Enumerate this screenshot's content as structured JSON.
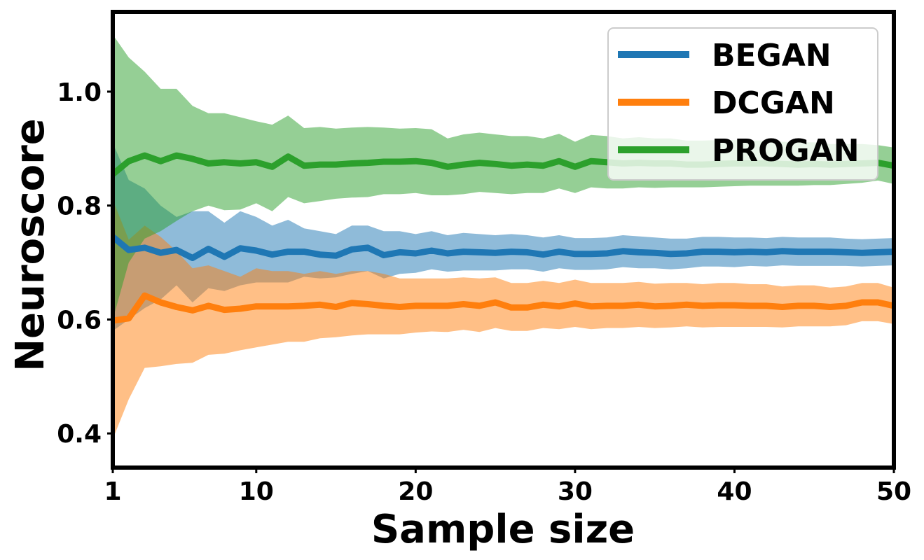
{
  "chart_data": {
    "type": "line",
    "xlabel": "Sample size",
    "ylabel": "Neuroscore",
    "xlim": [
      1,
      50
    ],
    "ylim": [
      0.34,
      1.14
    ],
    "xticks": [
      1,
      10,
      20,
      30,
      40,
      50
    ],
    "yticks": [
      0.4,
      0.6,
      0.8,
      1.0
    ],
    "ytick_labels": [
      "0.4",
      "0.6",
      "0.8",
      "1.0"
    ],
    "grid": false,
    "legend_position": "top-right",
    "series": [
      {
        "name": "BEGAN",
        "color": "#1f77b4",
        "band_color": "#1f77b4",
        "x": [
          1,
          2,
          3,
          4,
          5,
          6,
          7,
          8,
          9,
          10,
          11,
          12,
          13,
          14,
          15,
          16,
          17,
          18,
          19,
          20,
          21,
          22,
          23,
          24,
          25,
          26,
          27,
          28,
          29,
          30,
          31,
          32,
          33,
          34,
          35,
          36,
          37,
          38,
          39,
          40,
          41,
          42,
          43,
          44,
          45,
          46,
          47,
          48,
          49,
          50
        ],
        "mean": [
          0.745,
          0.722,
          0.726,
          0.717,
          0.722,
          0.708,
          0.724,
          0.71,
          0.725,
          0.721,
          0.714,
          0.719,
          0.719,
          0.714,
          0.712,
          0.723,
          0.726,
          0.713,
          0.718,
          0.716,
          0.721,
          0.716,
          0.719,
          0.718,
          0.717,
          0.719,
          0.718,
          0.714,
          0.719,
          0.715,
          0.715,
          0.716,
          0.72,
          0.718,
          0.717,
          0.715,
          0.716,
          0.719,
          0.719,
          0.718,
          0.719,
          0.718,
          0.72,
          0.719,
          0.719,
          0.719,
          0.718,
          0.717,
          0.718,
          0.719
        ],
        "upper": [
          0.91,
          0.845,
          0.83,
          0.8,
          0.78,
          0.79,
          0.79,
          0.77,
          0.79,
          0.78,
          0.765,
          0.775,
          0.76,
          0.755,
          0.75,
          0.765,
          0.765,
          0.755,
          0.755,
          0.75,
          0.755,
          0.748,
          0.752,
          0.75,
          0.748,
          0.75,
          0.748,
          0.744,
          0.748,
          0.743,
          0.743,
          0.744,
          0.748,
          0.746,
          0.744,
          0.742,
          0.742,
          0.745,
          0.745,
          0.744,
          0.744,
          0.743,
          0.745,
          0.744,
          0.744,
          0.744,
          0.742,
          0.741,
          0.742,
          0.743
        ],
        "lower": [
          0.58,
          0.6,
          0.62,
          0.635,
          0.66,
          0.63,
          0.655,
          0.65,
          0.66,
          0.665,
          0.665,
          0.665,
          0.675,
          0.672,
          0.674,
          0.68,
          0.685,
          0.672,
          0.68,
          0.682,
          0.688,
          0.684,
          0.686,
          0.686,
          0.686,
          0.688,
          0.688,
          0.684,
          0.69,
          0.687,
          0.687,
          0.688,
          0.692,
          0.69,
          0.69,
          0.688,
          0.69,
          0.693,
          0.693,
          0.692,
          0.694,
          0.693,
          0.695,
          0.694,
          0.694,
          0.694,
          0.694,
          0.693,
          0.694,
          0.695
        ]
      },
      {
        "name": "DCGAN",
        "color": "#ff7f0e",
        "band_color": "#ff7f0e",
        "x": [
          1,
          2,
          3,
          4,
          5,
          6,
          7,
          8,
          9,
          10,
          11,
          12,
          13,
          14,
          15,
          16,
          17,
          18,
          19,
          20,
          21,
          22,
          23,
          24,
          25,
          26,
          27,
          28,
          29,
          30,
          31,
          32,
          33,
          34,
          35,
          36,
          37,
          38,
          39,
          40,
          41,
          42,
          43,
          44,
          45,
          46,
          47,
          48,
          49,
          50
        ],
        "mean": [
          0.598,
          0.602,
          0.642,
          0.63,
          0.622,
          0.616,
          0.624,
          0.617,
          0.619,
          0.623,
          0.623,
          0.623,
          0.624,
          0.626,
          0.622,
          0.629,
          0.627,
          0.624,
          0.622,
          0.624,
          0.624,
          0.624,
          0.627,
          0.624,
          0.63,
          0.621,
          0.621,
          0.626,
          0.623,
          0.628,
          0.623,
          0.624,
          0.624,
          0.626,
          0.623,
          0.624,
          0.626,
          0.624,
          0.625,
          0.625,
          0.624,
          0.624,
          0.622,
          0.624,
          0.624,
          0.622,
          0.624,
          0.63,
          0.63,
          0.624
        ],
        "upper": [
          0.81,
          0.74,
          0.765,
          0.745,
          0.72,
          0.69,
          0.695,
          0.685,
          0.675,
          0.69,
          0.685,
          0.685,
          0.68,
          0.685,
          0.68,
          0.685,
          0.685,
          0.68,
          0.672,
          0.672,
          0.672,
          0.672,
          0.674,
          0.672,
          0.674,
          0.664,
          0.664,
          0.668,
          0.664,
          0.67,
          0.664,
          0.664,
          0.664,
          0.666,
          0.663,
          0.664,
          0.664,
          0.662,
          0.664,
          0.664,
          0.662,
          0.662,
          0.658,
          0.66,
          0.66,
          0.656,
          0.658,
          0.664,
          0.664,
          0.656
        ],
        "lower": [
          0.39,
          0.46,
          0.515,
          0.518,
          0.522,
          0.524,
          0.538,
          0.54,
          0.546,
          0.551,
          0.556,
          0.561,
          0.561,
          0.567,
          0.569,
          0.572,
          0.574,
          0.574,
          0.574,
          0.577,
          0.579,
          0.578,
          0.582,
          0.578,
          0.585,
          0.58,
          0.58,
          0.585,
          0.583,
          0.587,
          0.583,
          0.585,
          0.585,
          0.587,
          0.585,
          0.586,
          0.588,
          0.586,
          0.587,
          0.587,
          0.587,
          0.587,
          0.586,
          0.588,
          0.588,
          0.588,
          0.59,
          0.597,
          0.597,
          0.592
        ]
      },
      {
        "name": "PROGAN",
        "color": "#2ca02c",
        "band_color": "#2ca02c",
        "x": [
          1,
          2,
          3,
          4,
          5,
          6,
          7,
          8,
          9,
          10,
          11,
          12,
          13,
          14,
          15,
          16,
          17,
          18,
          19,
          20,
          21,
          22,
          23,
          24,
          25,
          26,
          27,
          28,
          29,
          30,
          31,
          32,
          33,
          34,
          35,
          36,
          37,
          38,
          39,
          40,
          41,
          42,
          43,
          44,
          45,
          46,
          47,
          48,
          49,
          50
        ],
        "mean": [
          0.855,
          0.878,
          0.888,
          0.878,
          0.888,
          0.882,
          0.874,
          0.876,
          0.874,
          0.876,
          0.868,
          0.886,
          0.87,
          0.872,
          0.872,
          0.874,
          0.875,
          0.877,
          0.877,
          0.878,
          0.875,
          0.868,
          0.872,
          0.875,
          0.873,
          0.87,
          0.872,
          0.87,
          0.878,
          0.868,
          0.878,
          0.876,
          0.874,
          0.875,
          0.874,
          0.874,
          0.872,
          0.872,
          0.873,
          0.874,
          0.874,
          0.874,
          0.873,
          0.872,
          0.873,
          0.872,
          0.873,
          0.874,
          0.875,
          0.87
        ],
        "upper": [
          1.1,
          1.06,
          1.035,
          1.005,
          1.005,
          0.975,
          0.962,
          0.962,
          0.955,
          0.948,
          0.942,
          0.958,
          0.936,
          0.938,
          0.935,
          0.937,
          0.938,
          0.937,
          0.935,
          0.936,
          0.934,
          0.918,
          0.925,
          0.928,
          0.925,
          0.922,
          0.922,
          0.918,
          0.926,
          0.912,
          0.924,
          0.922,
          0.918,
          0.92,
          0.918,
          0.918,
          0.914,
          0.914,
          0.915,
          0.915,
          0.914,
          0.914,
          0.912,
          0.911,
          0.911,
          0.908,
          0.908,
          0.908,
          0.906,
          0.902
        ],
        "lower": [
          0.6,
          0.7,
          0.742,
          0.755,
          0.773,
          0.79,
          0.8,
          0.792,
          0.793,
          0.804,
          0.79,
          0.815,
          0.804,
          0.808,
          0.812,
          0.814,
          0.815,
          0.82,
          0.82,
          0.822,
          0.818,
          0.818,
          0.82,
          0.824,
          0.822,
          0.82,
          0.822,
          0.822,
          0.83,
          0.822,
          0.832,
          0.83,
          0.83,
          0.832,
          0.831,
          0.832,
          0.832,
          0.832,
          0.833,
          0.834,
          0.835,
          0.835,
          0.835,
          0.835,
          0.836,
          0.836,
          0.838,
          0.84,
          0.844,
          0.838
        ]
      }
    ]
  }
}
